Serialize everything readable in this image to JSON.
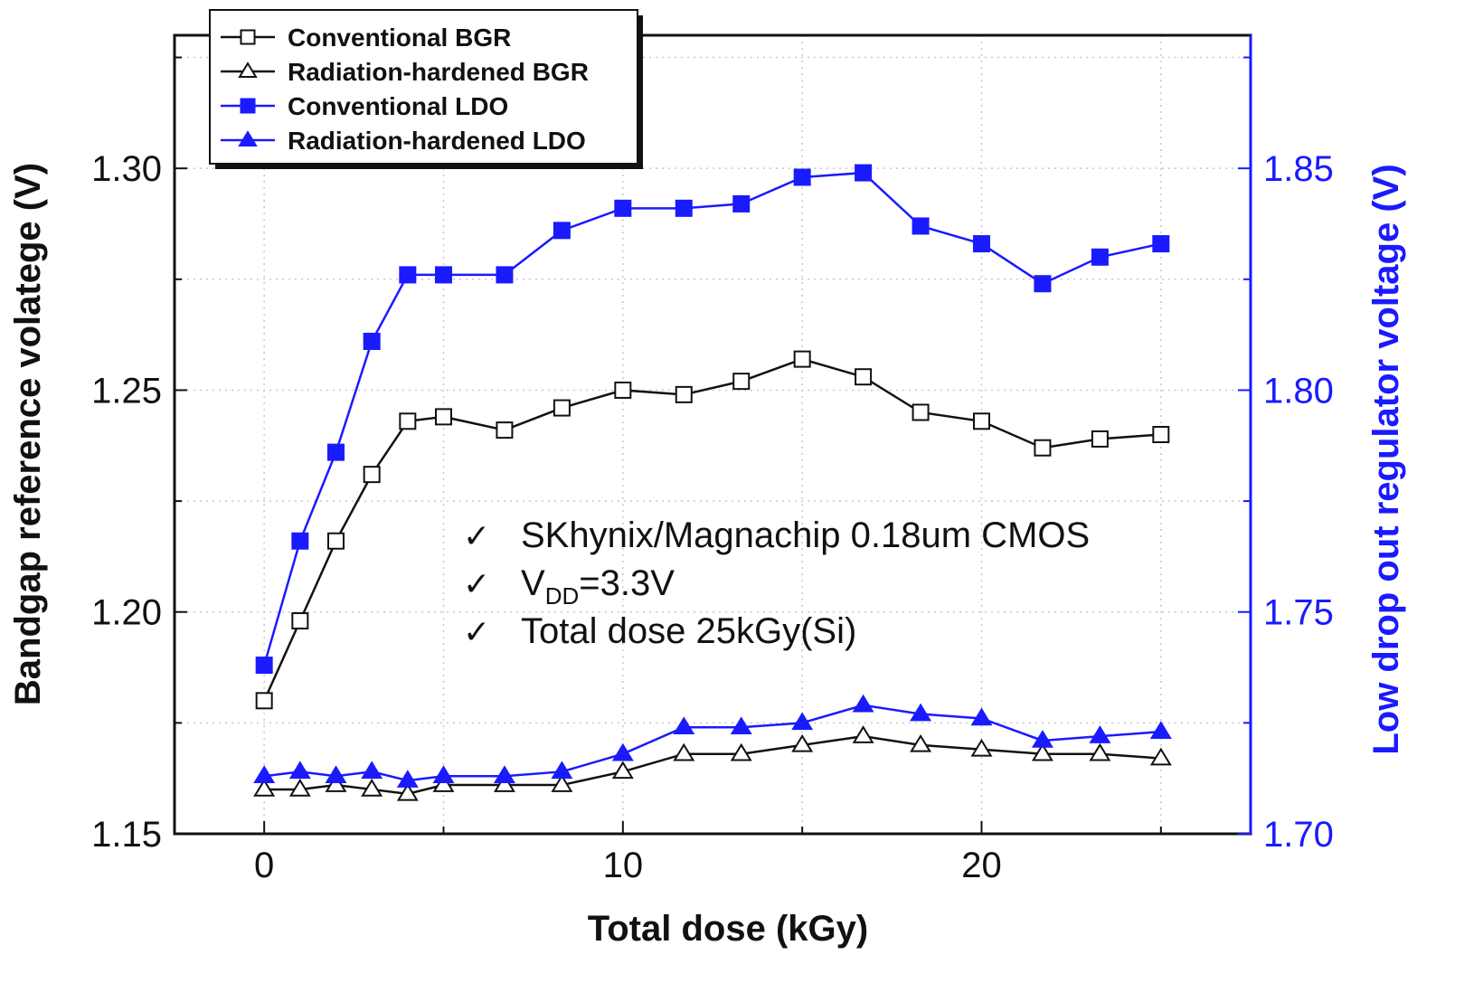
{
  "chart_data": {
    "type": "line",
    "title": "",
    "xlabel": "Total dose (kGy)",
    "ylabel_left": "Bandgap reference volatege (V)",
    "ylabel_right": "Low drop out regulator voltage (V)",
    "xlim": [
      -2.5,
      27.5
    ],
    "ylim_left": [
      1.15,
      1.33
    ],
    "ylim_right": [
      1.7,
      1.88
    ],
    "xticks": [
      0,
      10,
      20
    ],
    "xtick_labels": [
      "0",
      "10",
      "20"
    ],
    "yticks_left": [
      1.15,
      1.2,
      1.25,
      1.3
    ],
    "ytick_labels_left": [
      "1.15",
      "1.20",
      "1.25",
      "1.30"
    ],
    "yticks_right": [
      1.7,
      1.75,
      1.8,
      1.85
    ],
    "ytick_labels_right": [
      "1.70",
      "1.75",
      "1.80",
      "1.85"
    ],
    "grid": true,
    "legend_position": "top-left",
    "x": [
      0,
      1,
      2,
      3,
      4,
      5,
      6.7,
      8.3,
      10,
      11.7,
      13.3,
      15,
      16.7,
      18.3,
      20,
      21.7,
      23.3,
      25
    ],
    "series": [
      {
        "name": "Conventional BGR",
        "axis": "left",
        "color": "#111111",
        "marker": "square-open",
        "values": [
          1.18,
          1.198,
          1.216,
          1.231,
          1.243,
          1.244,
          1.241,
          1.246,
          1.25,
          1.249,
          1.252,
          1.257,
          1.253,
          1.245,
          1.243,
          1.237,
          1.239,
          1.24
        ]
      },
      {
        "name": "Radiation-hardened BGR",
        "axis": "left",
        "color": "#111111",
        "marker": "triangle-open",
        "values": [
          1.16,
          1.16,
          1.161,
          1.16,
          1.159,
          1.161,
          1.161,
          1.161,
          1.164,
          1.168,
          1.168,
          1.17,
          1.172,
          1.17,
          1.169,
          1.168,
          1.168,
          1.167
        ]
      },
      {
        "name": "Conventional LDO",
        "axis": "right",
        "color": "#1a1aff",
        "marker": "square-filled",
        "values": [
          1.738,
          1.766,
          1.786,
          1.811,
          1.826,
          1.826,
          1.826,
          1.836,
          1.841,
          1.841,
          1.842,
          1.848,
          1.849,
          1.837,
          1.833,
          1.824,
          1.83,
          1.833
        ]
      },
      {
        "name": "Radiation-hardened LDO",
        "axis": "right",
        "color": "#1a1aff",
        "marker": "triangle-filled",
        "values": [
          1.713,
          1.714,
          1.713,
          1.714,
          1.712,
          1.713,
          1.713,
          1.714,
          1.718,
          1.724,
          1.724,
          1.725,
          1.729,
          1.727,
          1.726,
          1.721,
          1.722,
          1.723
        ]
      }
    ],
    "annotations": [
      {
        "check": "✓",
        "text": "SKhynix/Magnachip 0.18um CMOS"
      },
      {
        "check": "✓",
        "prefix": "V",
        "sub": "DD",
        "text": "=3.3V"
      },
      {
        "check": "✓",
        "text": "Total dose 25kGy(Si)"
      }
    ]
  }
}
